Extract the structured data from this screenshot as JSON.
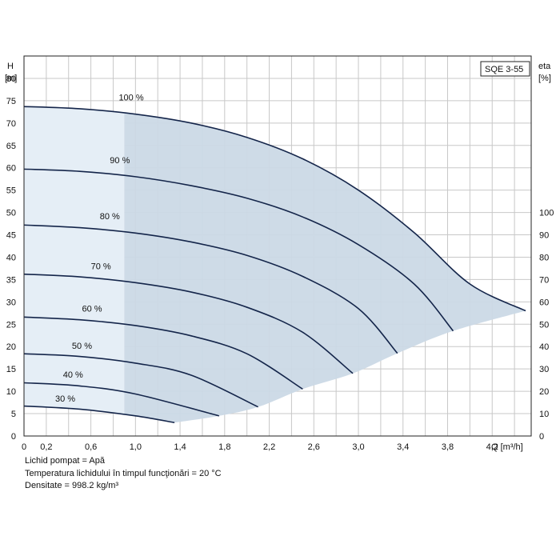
{
  "chart_data": {
    "type": "line",
    "model_label": "SQE 3-55",
    "y_left_label_line1": "H",
    "y_left_label_line2": "[m]",
    "y_right_label_line1": "eta",
    "y_right_label_line2": "[%]",
    "x_label": "Q [m³/h]",
    "x_ticks": [
      "0",
      "0,2",
      "0,6",
      "1,0",
      "1,4",
      "1,8",
      "2,2",
      "2,6",
      "3,0",
      "3,4",
      "3,8",
      "4,2"
    ],
    "x_tick_values": [
      0,
      0.2,
      0.6,
      1.0,
      1.4,
      1.8,
      2.2,
      2.6,
      3.0,
      3.4,
      3.8,
      4.2
    ],
    "xlim": [
      0,
      4.55
    ],
    "y_left_ticks": [
      0,
      5,
      10,
      15,
      20,
      25,
      30,
      35,
      40,
      45,
      50,
      55,
      60,
      65,
      70,
      75,
      80
    ],
    "ylim": [
      0,
      85
    ],
    "y_right_ticks": [
      0,
      10,
      20,
      30,
      40,
      50,
      60,
      70,
      80,
      90,
      100
    ],
    "y_right_range": [
      0,
      100
    ],
    "y_right_max_at_h": 50,
    "grid": true,
    "series": [
      {
        "name": "100 %",
        "label_at": [
          0.85,
          74.5
        ],
        "points": [
          [
            0,
            73.7
          ],
          [
            0.5,
            73.2
          ],
          [
            1.0,
            72.0
          ],
          [
            1.5,
            70.0
          ],
          [
            2.0,
            66.8
          ],
          [
            2.5,
            62.0
          ],
          [
            3.0,
            55.0
          ],
          [
            3.5,
            45.5
          ],
          [
            4.0,
            34.0
          ],
          [
            4.5,
            28.0
          ]
        ]
      },
      {
        "name": "90 %",
        "label_at": [
          0.77,
          60.5
        ],
        "points": [
          [
            0,
            59.7
          ],
          [
            0.5,
            59.2
          ],
          [
            1.0,
            58.0
          ],
          [
            1.5,
            56.0
          ],
          [
            2.0,
            53.2
          ],
          [
            2.5,
            49.0
          ],
          [
            3.0,
            42.8
          ],
          [
            3.5,
            34.0
          ],
          [
            3.85,
            23.5
          ]
        ]
      },
      {
        "name": "80 %",
        "label_at": [
          0.68,
          48.0
        ],
        "points": [
          [
            0,
            47.2
          ],
          [
            0.5,
            46.6
          ],
          [
            1.0,
            45.4
          ],
          [
            1.5,
            43.4
          ],
          [
            2.0,
            40.4
          ],
          [
            2.5,
            35.7
          ],
          [
            3.0,
            28.5
          ],
          [
            3.35,
            18.5
          ]
        ]
      },
      {
        "name": "70 %",
        "label_at": [
          0.6,
          36.8
        ],
        "points": [
          [
            0,
            36.2
          ],
          [
            0.5,
            35.6
          ],
          [
            1.0,
            34.3
          ],
          [
            1.5,
            32.2
          ],
          [
            2.0,
            28.8
          ],
          [
            2.5,
            23.2
          ],
          [
            2.95,
            14.0
          ]
        ]
      },
      {
        "name": "60 %",
        "label_at": [
          0.52,
          27.3
        ],
        "points": [
          [
            0,
            26.6
          ],
          [
            0.5,
            26.0
          ],
          [
            1.0,
            24.7
          ],
          [
            1.5,
            22.4
          ],
          [
            2.0,
            18.4
          ],
          [
            2.5,
            10.5
          ]
        ]
      },
      {
        "name": "50 %",
        "label_at": [
          0.43,
          19.0
        ],
        "points": [
          [
            0,
            18.4
          ],
          [
            0.5,
            17.8
          ],
          [
            1.0,
            16.3
          ],
          [
            1.5,
            13.6
          ],
          [
            2.1,
            6.5
          ]
        ]
      },
      {
        "name": "40 %",
        "label_at": [
          0.35,
          12.5
        ],
        "points": [
          [
            0,
            11.9
          ],
          [
            0.5,
            11.2
          ],
          [
            1.0,
            9.4
          ],
          [
            1.75,
            4.5
          ]
        ]
      },
      {
        "name": "30 %",
        "label_at": [
          0.28,
          7.2
        ],
        "points": [
          [
            0,
            6.7
          ],
          [
            0.5,
            6.0
          ],
          [
            1.0,
            4.5
          ],
          [
            1.35,
            3.0
          ]
        ]
      }
    ],
    "region_lower_boundary": [
      [
        1.35,
        3.0
      ],
      [
        1.75,
        4.5
      ],
      [
        2.1,
        6.5
      ],
      [
        2.5,
        10.5
      ],
      [
        2.95,
        14.0
      ],
      [
        3.35,
        18.5
      ],
      [
        3.85,
        23.5
      ],
      [
        4.5,
        28.0
      ]
    ],
    "light_region_x_max": 0.9
  },
  "notes": [
    "Lichid pompat = Apă",
    "Temperatura lichidului în timpul funcţionări = 20 °C",
    "Densitate = 998.2 kg/m³"
  ]
}
